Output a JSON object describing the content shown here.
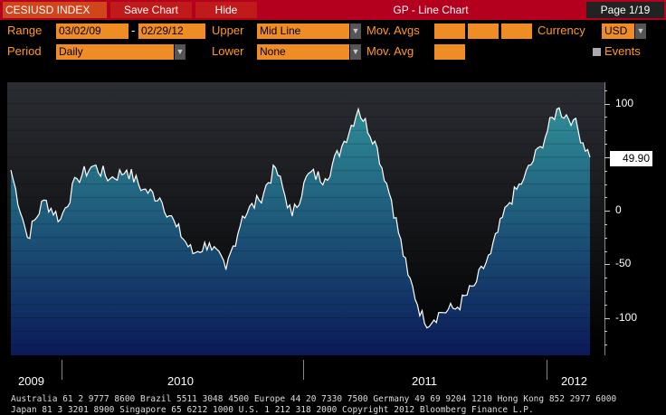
{
  "titlebar": {
    "ticker": "CESIUSD INDEX",
    "save_chart": "Save Chart",
    "hide": "Hide",
    "title": "GP - Line Chart",
    "page": "Page 1/19"
  },
  "controls": {
    "range_label": "Range",
    "range_start": "03/02/09",
    "range_sep": "-",
    "range_end": "02/29/12",
    "upper_label": "Upper",
    "upper_value": "Mid Line",
    "mov_avgs_label": "Mov. Avgs",
    "currency_label": "Currency",
    "currency_value": "USD",
    "period_label": "Period",
    "period_value": "Daily",
    "lower_label": "Lower",
    "lower_value": "None",
    "mov_avg_label": "Mov. Avg",
    "events_label": "Events"
  },
  "chart_data": {
    "type": "line",
    "series": [
      {
        "x": [
          "2009-03",
          "2009-04",
          "2009-05",
          "2009-06",
          "2009-07",
          "2009-08",
          "2009-09",
          "2009-10",
          "2009-11",
          "2009-12",
          "2010-01",
          "2010-02",
          "2010-03",
          "2010-04",
          "2010-05",
          "2010-06",
          "2010-07",
          "2010-08",
          "2010-09",
          "2010-10",
          "2010-11",
          "2010-12",
          "2011-01",
          "2011-02",
          "2011-03",
          "2011-04",
          "2011-05",
          "2011-06",
          "2011-07",
          "2011-08",
          "2011-09",
          "2011-10",
          "2011-11",
          "2011-12",
          "2012-01",
          "2012-02"
        ],
        "values": [
          38,
          -25,
          10,
          -8,
          30,
          42,
          30,
          38,
          20,
          12,
          -15,
          -40,
          -30,
          -55,
          -5,
          10,
          40,
          -5,
          35,
          30,
          60,
          95,
          65,
          10,
          -60,
          -105,
          -95,
          -90,
          -70,
          -40,
          5,
          30,
          60,
          95,
          85,
          50
        ]
      }
    ],
    "ylim": [
      -135,
      120
    ],
    "yticks": [
      "100",
      "50",
      "0",
      "-50",
      "-100"
    ],
    "ytick_values": [
      100,
      50,
      0,
      -50,
      -100
    ],
    "last_value": "49.90",
    "x_labels": [
      "2009",
      "2010",
      "2011",
      "2012"
    ],
    "colors": {
      "line": "#ffffff",
      "fill_top": "#2f8d96",
      "fill_bottom": "#0a1a58",
      "bg_top": "#2a2d33",
      "bg_bottom": "#000000"
    }
  },
  "footer": {
    "line1": "Australia 61 2 9777 8600 Brazil 5511 3048 4500 Europe 44 20 7330 7500 Germany 49 69 9204 1210 Hong Kong 852 2977 6000",
    "line2": "Japan 81 3 3201 8900          Singapore 65 6212 1000          U.S. 1 212 318 2000          Copyright 2012 Bloomberg Finance L.P."
  }
}
